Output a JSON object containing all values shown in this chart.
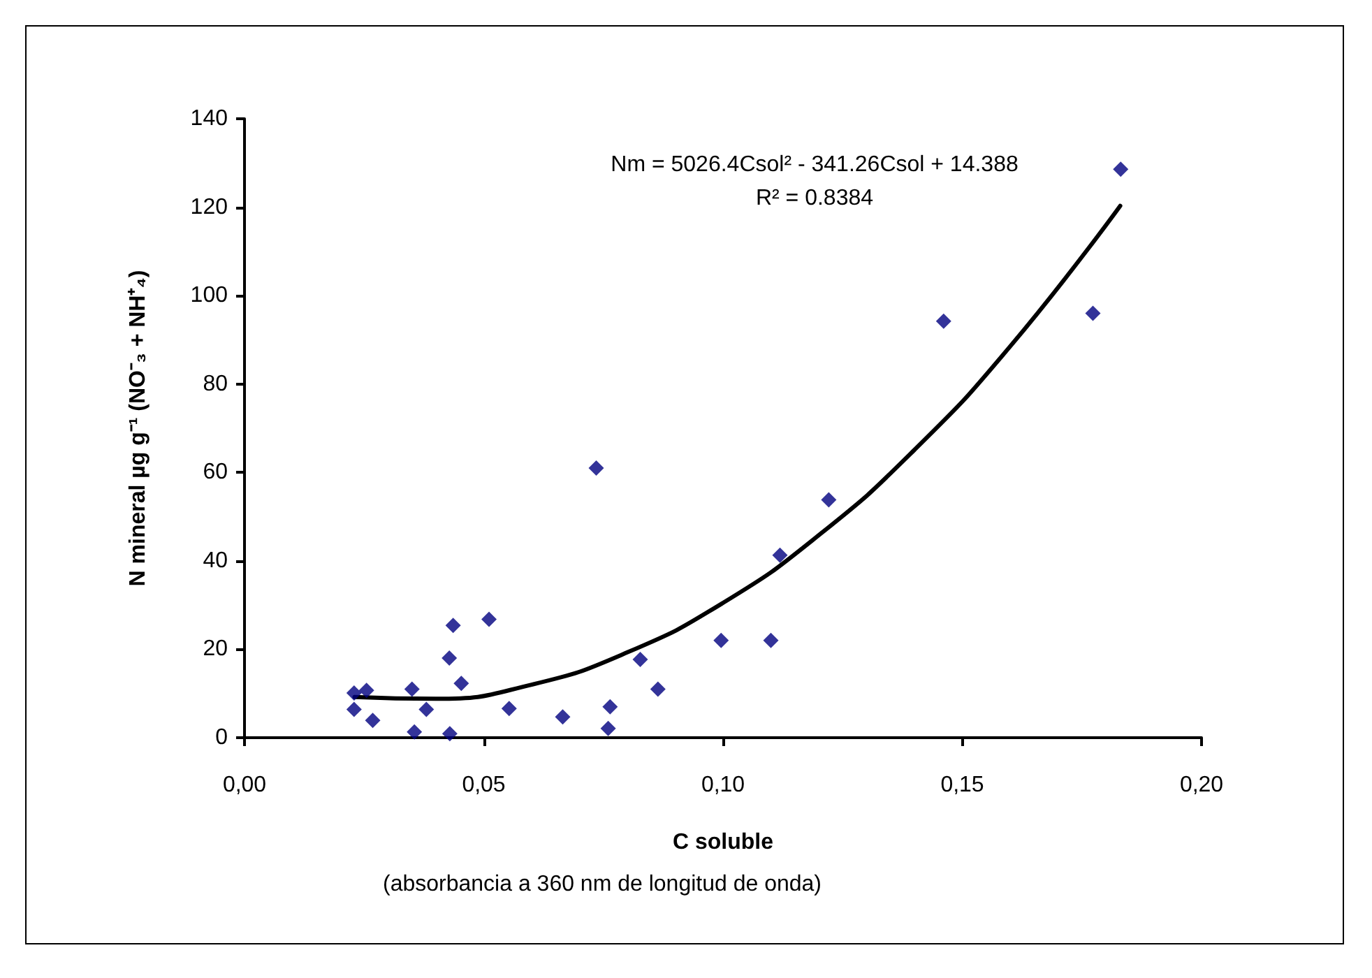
{
  "chart_data": {
    "type": "scatter",
    "xlabel": "C soluble",
    "ylabel": "N mineral µg g⁻¹ (NO⁻₃ + NH⁺₄)",
    "annotations": [
      "Nm = 5026.4Csol² - 341.26Csol + 14.388",
      "R² = 0.8384",
      "(absorbancia a 360 nm de longitud de onda)"
    ],
    "xlim": [
      0,
      0.2
    ],
    "xticks": [
      {
        "value": 0,
        "label": "0,00"
      },
      {
        "value": 0.05,
        "label": "0,05"
      },
      {
        "value": 0.1,
        "label": "0,10"
      },
      {
        "value": 0.15,
        "label": "0,15"
      },
      {
        "value": 0.2,
        "label": "0,20"
      }
    ],
    "ylim": [
      0,
      140
    ],
    "yticks": [
      0,
      20,
      40,
      60,
      80,
      100,
      120,
      140
    ],
    "grid": false,
    "marker": "diamond",
    "series": [
      {
        "color": "#000080",
        "x": [
          0.0229,
          0.0255,
          0.0229,
          0.0268,
          0.035,
          0.0355,
          0.038,
          0.0436,
          0.0428,
          0.0453,
          0.0429,
          0.0511,
          0.0553,
          0.0665,
          0.0764,
          0.076,
          0.0827,
          0.0864,
          0.0735,
          0.1221,
          0.1119,
          0.0996,
          0.11,
          0.1461,
          0.1773,
          0.1831
        ],
        "values": [
          10.1,
          10.7,
          6.4,
          3.9,
          11.0,
          1.3,
          6.4,
          25.4,
          18.0,
          12.3,
          0.9,
          26.8,
          6.6,
          4.7,
          7.0,
          2.1,
          17.7,
          11.0,
          61.0,
          53.8,
          41.3,
          22.0,
          22.0,
          94.2,
          96.0,
          128.6
        ]
      },
      {
        "type": "line",
        "color": "#000000",
        "marker": "none",
        "line_style": "solid",
        "x": [
          0.023,
          0.04,
          0.06,
          0.08,
          0.1,
          0.12,
          0.14,
          0.16,
          0.183
        ],
        "values": [
          9.2,
          8.8,
          12.0,
          19.3,
          30.5,
          45.8,
          65.1,
          88.5,
          120.3
        ]
      }
    ]
  }
}
